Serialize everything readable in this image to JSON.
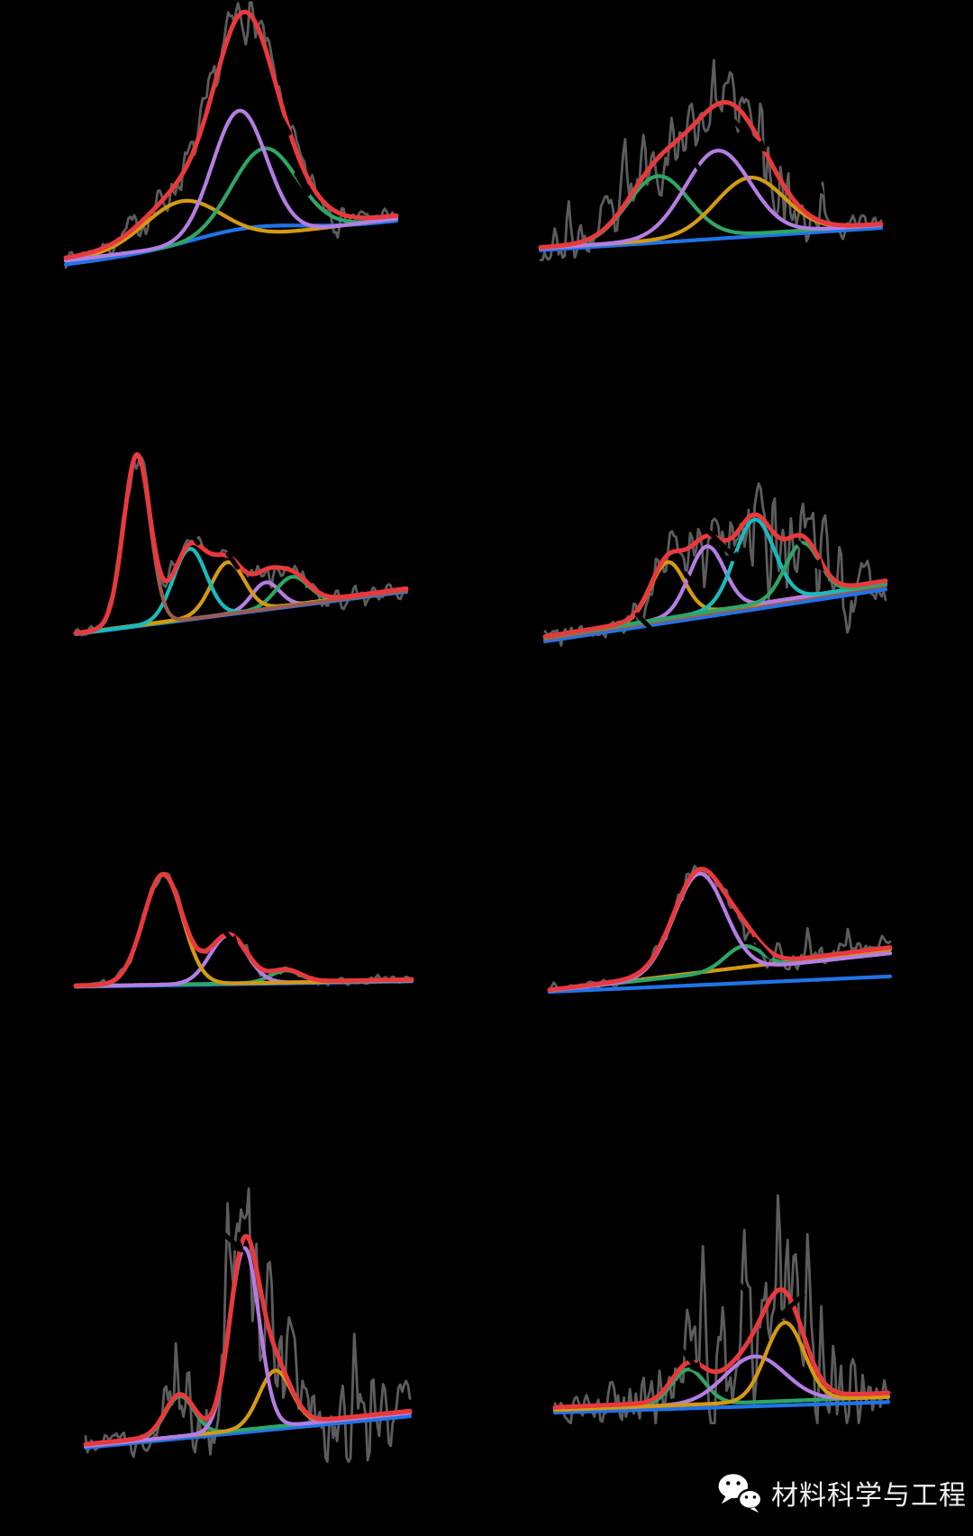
{
  "page": {
    "background": "#000000"
  },
  "footer": {
    "icon": "wechat-icon",
    "label": "材料科学与工程",
    "text_color": "#f0f0f0"
  },
  "chart_data": [
    {
      "id": "panel-1",
      "type": "line",
      "position": "row-1-left",
      "axes_visible": false,
      "envelope": {
        "name": "fit-envelope",
        "color": "#e8393d",
        "base": [
          0.04,
          0.205
        ]
      },
      "series": [
        {
          "name": "component-blue",
          "color": "#2173e8",
          "base": [
            0.015,
            0.185
          ],
          "peaks": [
            {
              "c": 0.55,
              "h": 0.05,
              "w": 0.17
            }
          ]
        },
        {
          "name": "component-orange",
          "color": "#d49a12",
          "base": [
            0.03,
            0.195
          ],
          "peaks": [
            {
              "c": 0.355,
              "h": 0.175,
              "w": 0.115
            }
          ]
        },
        {
          "name": "component-green",
          "color": "#2fa566",
          "base": [
            0.03,
            0.195
          ],
          "peaks": [
            {
              "c": 0.6,
              "h": 0.34,
              "w": 0.1
            }
          ]
        },
        {
          "name": "component-purple",
          "color": "#b57de2",
          "base": [
            0.03,
            0.195
          ],
          "peaks": [
            {
              "c": 0.525,
              "h": 0.5,
              "w": 0.082
            }
          ]
        }
      ],
      "noise": {
        "name": "raw-data",
        "color": "#5d5d5d",
        "seed": 7,
        "amp": [
          0.04,
          0.05
        ],
        "clusters": [
          {
            "c": 0.52,
            "w": 0.1,
            "a": 0.1
          },
          {
            "c": 0.3,
            "w": 0.1,
            "a": 0.05
          }
        ]
      },
      "annotations": [
        {
          "x": 0.655,
          "y": 0.58,
          "len": 0.09,
          "angle": -62,
          "head": false
        },
        {
          "x": 0.715,
          "y": 0.33,
          "len": 0.07,
          "angle": -60,
          "head": false
        }
      ]
    },
    {
      "id": "panel-2",
      "type": "line",
      "position": "row-1-right",
      "axes_visible": false,
      "envelope": {
        "name": "fit-envelope",
        "color": "#e8393d",
        "base": [
          0.025,
          0.145
        ]
      },
      "series": [
        {
          "name": "component-blue",
          "color": "#2173e8",
          "base": [
            0.01,
            0.125
          ],
          "peaks": []
        },
        {
          "name": "component-green",
          "color": "#2fa566",
          "base": [
            0.02,
            0.14
          ],
          "peaks": [
            {
              "c": 0.345,
              "h": 0.33,
              "w": 0.09
            }
          ]
        },
        {
          "name": "component-orange",
          "color": "#d49a12",
          "base": [
            0.02,
            0.14
          ],
          "peaks": [
            {
              "c": 0.615,
              "h": 0.29,
              "w": 0.1
            }
          ]
        },
        {
          "name": "component-purple",
          "color": "#b57de2",
          "base": [
            0.02,
            0.14
          ],
          "peaks": [
            {
              "c": 0.52,
              "h": 0.44,
              "w": 0.095
            }
          ]
        }
      ],
      "noise": {
        "name": "raw-data",
        "color": "#5d5d5d",
        "seed": 23,
        "amp": [
          0.09,
          0.09
        ],
        "clusters": [
          {
            "c": 0.3,
            "w": 0.17,
            "a": 0.16
          },
          {
            "c": 0.68,
            "w": 0.08,
            "a": 0.24
          }
        ]
      },
      "annotations": [
        {
          "x": 0.6,
          "y": 0.62,
          "len": 0.13,
          "angle": -43,
          "head": true
        },
        {
          "x": 0.465,
          "y": 0.43,
          "len": 0.08,
          "angle": -55,
          "head": false
        },
        {
          "x": 0.79,
          "y": 0.38,
          "len": 0.08,
          "angle": -48,
          "head": true
        }
      ]
    },
    {
      "id": "panel-3",
      "type": "line",
      "position": "row-2-left",
      "axes_visible": false,
      "envelope": {
        "name": "fit-envelope",
        "color": "#e8393d",
        "base": [
          0.005,
          0.215
        ]
      },
      "series": [
        {
          "name": "component-blue",
          "color": "#2173e8",
          "base": [
            0.0,
            0.2
          ],
          "peaks": []
        },
        {
          "name": "component-purple",
          "color": "#b57de2",
          "base": [
            0.002,
            0.205
          ],
          "peaks": [
            {
              "c": 0.575,
              "h": 0.125,
              "w": 0.042
            }
          ]
        },
        {
          "name": "component-green",
          "color": "#2fa566",
          "base": [
            0.002,
            0.205
          ],
          "peaks": [
            {
              "c": 0.655,
              "h": 0.135,
              "w": 0.05
            }
          ]
        },
        {
          "name": "component-orange",
          "color": "#d49a12",
          "base": [
            0.004,
            0.21
          ],
          "peaks": [
            {
              "c": 0.46,
              "h": 0.24,
              "w": 0.05
            }
          ]
        },
        {
          "name": "component-cyan",
          "color": "#17bcbe",
          "base": [
            0.002,
            0.205
          ],
          "peaks": [
            {
              "c": 0.345,
              "h": 0.33,
              "w": 0.05
            }
          ]
        },
        {
          "name": "component-brown",
          "color": "#9c5a50",
          "base": [
            0.002,
            0.205
          ],
          "peaks": [
            {
              "c": 0.185,
              "h": 0.8,
              "w": 0.04
            }
          ]
        }
      ],
      "noise": {
        "name": "raw-data",
        "color": "#5d5d5d",
        "seed": 31,
        "amp": [
          0.03,
          0.04
        ],
        "clusters": [
          {
            "c": 0.185,
            "w": 0.06,
            "a": 0.05
          },
          {
            "c": 0.78,
            "w": 0.18,
            "a": 0.03
          }
        ]
      },
      "annotations": [
        {
          "x": 0.355,
          "y": 0.46,
          "len": 0.05,
          "angle": -55,
          "head": false
        },
        {
          "x": 0.475,
          "y": 0.345,
          "len": 0.05,
          "angle": -55,
          "head": false
        }
      ]
    },
    {
      "id": "panel-4",
      "type": "line",
      "position": "row-2-right",
      "axes_visible": false,
      "envelope": {
        "name": "fit-envelope",
        "color": "#e8393d",
        "base": [
          0.025,
          0.315
        ]
      },
      "series": [
        {
          "name": "component-blue",
          "color": "#2173e8",
          "base": [
            0.0,
            0.27
          ],
          "peaks": []
        },
        {
          "name": "component-brown",
          "color": "#9c5a50",
          "base": [
            0.012,
            0.29
          ],
          "peaks": []
        },
        {
          "name": "component-orange",
          "color": "#d49a12",
          "base": [
            0.02,
            0.3
          ],
          "peaks": [
            {
              "c": 0.36,
              "h": 0.29,
              "w": 0.05
            }
          ]
        },
        {
          "name": "component-purple",
          "color": "#b57de2",
          "base": [
            0.02,
            0.3
          ],
          "peaks": [
            {
              "c": 0.475,
              "h": 0.34,
              "w": 0.052
            }
          ]
        },
        {
          "name": "component-cyan",
          "color": "#17bcbe",
          "base": [
            0.02,
            0.3
          ],
          "peaks": [
            {
              "c": 0.615,
              "h": 0.44,
              "w": 0.058
            }
          ]
        },
        {
          "name": "component-green",
          "color": "#2fa566",
          "base": [
            0.02,
            0.3
          ],
          "peaks": [
            {
              "c": 0.755,
              "h": 0.28,
              "w": 0.05
            }
          ]
        }
      ],
      "noise": {
        "name": "raw-data",
        "color": "#5d5d5d",
        "seed": 41,
        "amp": [
          0.05,
          0.08
        ],
        "clusters": [
          {
            "c": 0.6,
            "w": 0.12,
            "a": 0.22
          },
          {
            "c": 0.85,
            "w": 0.1,
            "a": 0.24
          },
          {
            "c": 0.3,
            "w": 0.1,
            "a": 0.08
          }
        ]
      },
      "annotations": [
        {
          "x": 0.52,
          "y": 0.5,
          "len": 0.11,
          "angle": -45,
          "head": true
        },
        {
          "x": 0.77,
          "y": 0.46,
          "len": 0.1,
          "angle": -48,
          "head": true
        },
        {
          "x": 0.43,
          "y": 0.31,
          "len": 0.06,
          "angle": -52,
          "head": false
        },
        {
          "x": 0.295,
          "y": 0.095,
          "len": 0.07,
          "angle": -46,
          "head": false
        }
      ]
    },
    {
      "id": "panel-5",
      "type": "line",
      "position": "row-3-left",
      "axes_visible": false,
      "envelope": {
        "name": "fit-envelope",
        "color": "#e8393d",
        "base": [
          0.015,
          0.065
        ]
      },
      "series": [
        {
          "name": "component-blue",
          "color": "#2173e8",
          "base": [
            0.005,
            0.05
          ],
          "peaks": []
        },
        {
          "name": "component-green",
          "color": "#2fa566",
          "base": [
            0.01,
            0.058
          ],
          "peaks": [
            {
              "c": 0.625,
              "h": 0.1,
              "w": 0.045
            }
          ]
        },
        {
          "name": "component-purple",
          "color": "#b57de2",
          "base": [
            0.01,
            0.058
          ],
          "peaks": [
            {
              "c": 0.455,
              "h": 0.4,
              "w": 0.055
            }
          ]
        },
        {
          "name": "component-orange",
          "color": "#d49a12",
          "base": [
            0.01,
            0.058
          ],
          "peaks": [
            {
              "c": 0.26,
              "h": 0.91,
              "w": 0.058
            }
          ]
        }
      ],
      "noise": {
        "name": "raw-data",
        "color": "#5d5d5d",
        "seed": 53,
        "amp": [
          0.02,
          0.035
        ],
        "clusters": [
          {
            "c": 0.27,
            "w": 0.09,
            "a": 0.04
          },
          {
            "c": 0.8,
            "w": 0.15,
            "a": 0.025
          }
        ]
      },
      "annotations": [
        {
          "x": 0.305,
          "y": 0.92,
          "len": 0.07,
          "angle": -66,
          "head": false
        },
        {
          "x": 0.45,
          "y": 0.44,
          "len": 0.06,
          "angle": -48,
          "head": true
        }
      ]
    },
    {
      "id": "panel-6",
      "type": "line",
      "position": "row-3-right",
      "axes_visible": false,
      "envelope": {
        "name": "fit-envelope",
        "color": "#e8393d",
        "base": [
          0.015,
          0.345
        ]
      },
      "series": [
        {
          "name": "component-blue",
          "color": "#2173e8",
          "base": [
            0.0,
            0.12
          ],
          "peaks": []
        },
        {
          "name": "component-orange",
          "color": "#d49a12",
          "base": [
            0.01,
            0.33
          ],
          "peaks": []
        },
        {
          "name": "component-green",
          "color": "#2fa566",
          "base": [
            0.01,
            0.3
          ],
          "peaks": [
            {
              "c": 0.57,
              "h": 0.18,
              "w": 0.055
            }
          ]
        },
        {
          "name": "component-purple",
          "color": "#b57de2",
          "base": [
            0.01,
            0.3
          ],
          "peaks": [
            {
              "c": 0.44,
              "h": 0.78,
              "w": 0.075
            }
          ]
        }
      ],
      "noise": {
        "name": "raw-data",
        "color": "#5d5d5d",
        "seed": 61,
        "amp": [
          0.03,
          0.065
        ],
        "clusters": [
          {
            "c": 0.42,
            "w": 0.1,
            "a": 0.05
          },
          {
            "c": 0.75,
            "w": 0.18,
            "a": 0.09
          }
        ]
      },
      "annotations": [
        {
          "x": 0.49,
          "y": 0.92,
          "len": 0.055,
          "angle": -50,
          "head": false
        },
        {
          "x": 0.625,
          "y": 0.34,
          "len": 0.07,
          "angle": -48,
          "head": false
        }
      ]
    },
    {
      "id": "panel-7",
      "type": "line",
      "position": "row-4-left",
      "axes_visible": false,
      "envelope": {
        "name": "fit-envelope",
        "color": "#e8393d",
        "base": [
          0.01,
          0.105
        ]
      },
      "series": [
        {
          "name": "component-blue",
          "color": "#2173e8",
          "base": [
            0.0,
            0.09
          ],
          "peaks": []
        },
        {
          "name": "component-green",
          "color": "#2fa566",
          "base": [
            0.005,
            0.1
          ],
          "peaks": [
            {
              "c": 0.29,
              "h": 0.115,
              "w": 0.045
            }
          ]
        },
        {
          "name": "component-orange",
          "color": "#d49a12",
          "base": [
            0.005,
            0.1
          ],
          "peaks": [
            {
              "c": 0.585,
              "h": 0.16,
              "w": 0.05
            }
          ]
        },
        {
          "name": "component-purple",
          "color": "#b57de2",
          "base": [
            0.005,
            0.1
          ],
          "peaks": [
            {
              "c": 0.49,
              "h": 0.52,
              "w": 0.045
            }
          ]
        }
      ],
      "noise": {
        "name": "raw-data",
        "color": "#5d5d5d",
        "seed": 71,
        "amp": [
          0.035,
          0.08
        ],
        "clusters": [
          {
            "c": 0.47,
            "w": 0.1,
            "a": 0.27
          },
          {
            "c": 0.75,
            "w": 0.16,
            "a": 0.12
          },
          {
            "c": 0.28,
            "w": 0.08,
            "a": 0.07
          }
        ]
      },
      "annotations": [
        {
          "x": 0.44,
          "y": 0.6,
          "len": 0.09,
          "angle": -42,
          "head": true
        },
        {
          "x": 0.615,
          "y": 0.42,
          "len": 0.08,
          "angle": -56,
          "head": false
        }
      ]
    },
    {
      "id": "panel-8",
      "type": "line",
      "position": "row-4-right",
      "axes_visible": false,
      "envelope": {
        "name": "fit-envelope",
        "color": "#e8393d",
        "base": [
          0.02,
          0.075
        ]
      },
      "series": [
        {
          "name": "component-blue",
          "color": "#2173e8",
          "base": [
            0.0,
            0.04
          ],
          "peaks": []
        },
        {
          "name": "component-green",
          "color": "#2fa566",
          "base": [
            0.01,
            0.06
          ],
          "peaks": [
            {
              "c": 0.4,
              "h": 0.135,
              "w": 0.05
            }
          ]
        },
        {
          "name": "component-purple",
          "color": "#b57de2",
          "base": [
            0.01,
            0.06
          ],
          "peaks": [
            {
              "c": 0.6,
              "h": 0.175,
              "w": 0.09
            }
          ]
        },
        {
          "name": "component-orange",
          "color": "#d49a12",
          "base": [
            0.01,
            0.06
          ],
          "peaks": [
            {
              "c": 0.69,
              "h": 0.3,
              "w": 0.058
            }
          ]
        }
      ],
      "noise": {
        "name": "raw-data",
        "color": "#5d5d5d",
        "seed": 83,
        "amp": [
          0.06,
          0.09
        ],
        "clusters": [
          {
            "c": 0.57,
            "w": 0.12,
            "a": 0.34
          },
          {
            "c": 0.82,
            "w": 0.09,
            "a": 0.2
          },
          {
            "c": 0.25,
            "w": 0.12,
            "a": 0.1
          }
        ]
      },
      "annotations": [
        {
          "x": 0.71,
          "y": 0.41,
          "len": 0.09,
          "angle": 222,
          "head": true
        },
        {
          "x": 0.4,
          "y": 0.21,
          "len": 0.08,
          "angle": -50,
          "head": true
        },
        {
          "x": 0.545,
          "y": 0.5,
          "len": 0.08,
          "angle": -45,
          "head": false
        }
      ]
    }
  ]
}
